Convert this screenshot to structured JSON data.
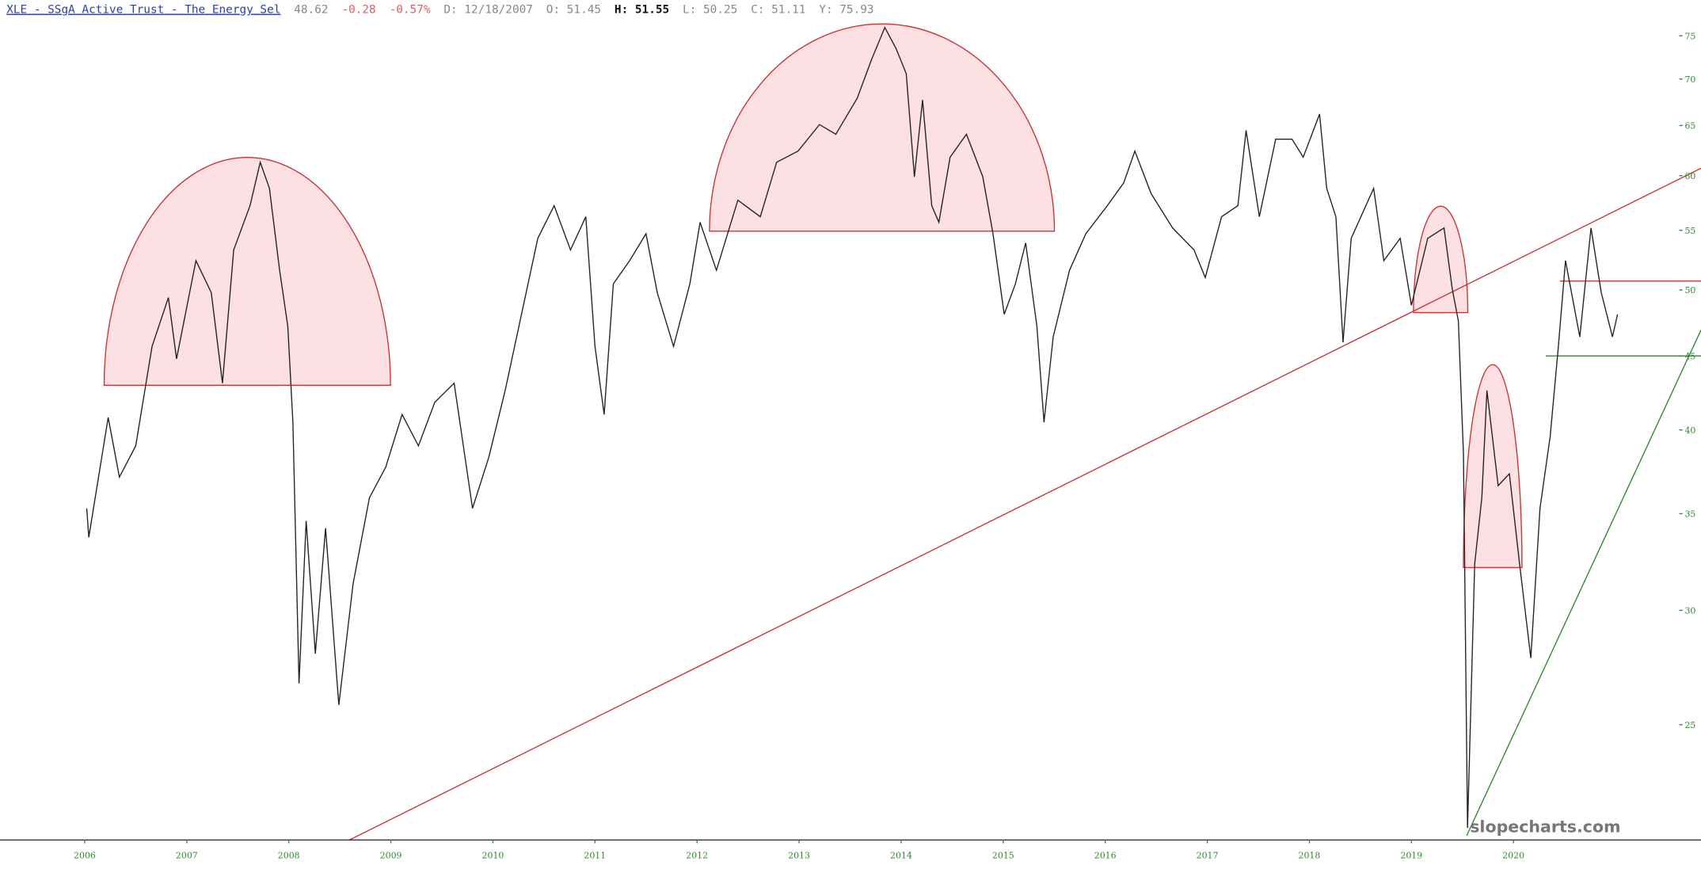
{
  "chart_data": {
    "type": "line",
    "title": "XLE - SSgA Active Trust - The Energy Sel",
    "quote": [
      "48.62",
      "-0.28",
      "-0.57%",
      "D: 12/18/2007",
      "O: 51.45",
      "H: 51.55",
      "L: 50.25",
      "C: 51.11",
      "Y: 75.93"
    ],
    "watermark": "slopecharts.com",
    "color": "#222222",
    "log_y": true,
    "xlim": [
      2005.17,
      2021.54
    ],
    "ylim": [
      20.8,
      79.4
    ],
    "xticks": [
      2006,
      2007,
      2008,
      2009,
      2010,
      2011,
      2012,
      2013,
      2014,
      2015,
      2016,
      2017,
      2018,
      2019,
      2020
    ],
    "yticks": [
      25,
      30,
      35,
      40,
      45,
      50,
      55,
      60,
      65,
      70,
      75
    ],
    "x": [
      2006.02,
      2006.04,
      2006.23,
      2006.34,
      2006.5,
      2006.66,
      2006.82,
      2006.9,
      2007.09,
      2007.24,
      2007.35,
      2007.46,
      2007.62,
      2007.72,
      2007.81,
      2007.91,
      2007.99,
      2008.04,
      2008.1,
      2008.17,
      2008.26,
      2008.36,
      2008.49,
      2008.63,
      2008.79,
      2008.95,
      2009.11,
      2009.27,
      2009.43,
      2009.62,
      2009.8,
      2009.96,
      2010.12,
      2010.28,
      2010.44,
      2010.6,
      2010.76,
      2010.91,
      2011.0,
      2011.09,
      2011.18,
      2011.34,
      2011.5,
      2011.61,
      2011.77,
      2011.93,
      2012.03,
      2012.19,
      2012.4,
      2012.62,
      2012.78,
      2012.99,
      2013.2,
      2013.36,
      2013.57,
      2013.71,
      2013.84,
      2013.95,
      2014.05,
      2014.13,
      2014.21,
      2014.3,
      2014.37,
      2014.48,
      2014.64,
      2014.8,
      2014.9,
      2015.01,
      2015.12,
      2015.22,
      2015.33,
      2015.4,
      2015.49,
      2015.65,
      2015.81,
      2016.02,
      2016.18,
      2016.29,
      2016.45,
      2016.66,
      2016.87,
      2016.98,
      2017.14,
      2017.3,
      2017.38,
      2017.51,
      2017.67,
      2017.83,
      2017.94,
      2018.1,
      2018.17,
      2018.26,
      2018.33,
      2018.41,
      2018.63,
      2018.73,
      2018.89,
      2019.0,
      2019.16,
      2019.32,
      2019.4,
      2019.46,
      2019.51,
      2019.55,
      2019.62,
      2019.69,
      2019.74,
      2019.85,
      2019.96,
      2020.06,
      2020.17,
      2020.26,
      2020.36,
      2020.44,
      2020.51,
      2020.65,
      2020.76,
      2020.86,
      2020.97,
      2021.02
    ],
    "values": [
      35.3,
      33.7,
      40.8,
      37.1,
      39.0,
      45.7,
      49.4,
      44.8,
      52.4,
      49.8,
      43.1,
      53.3,
      57.2,
      61.3,
      58.8,
      51.6,
      47.2,
      40.5,
      26.7,
      34.6,
      28.0,
      34.2,
      25.8,
      31.3,
      35.9,
      37.7,
      41.0,
      39.0,
      41.8,
      43.1,
      35.3,
      38.3,
      42.6,
      48.1,
      54.3,
      57.2,
      53.3,
      56.2,
      45.7,
      41.0,
      50.5,
      52.4,
      54.7,
      49.8,
      45.7,
      50.5,
      55.7,
      51.6,
      57.7,
      56.2,
      61.3,
      62.4,
      65.1,
      64.1,
      67.9,
      72.2,
      76.0,
      73.5,
      70.6,
      59.9,
      67.7,
      57.2,
      55.7,
      61.8,
      64.1,
      59.9,
      54.7,
      48.1,
      50.5,
      53.9,
      47.2,
      40.5,
      46.4,
      51.6,
      54.7,
      57.2,
      59.3,
      62.4,
      58.3,
      55.2,
      53.3,
      51.0,
      56.2,
      57.2,
      64.5,
      56.2,
      63.6,
      63.6,
      61.8,
      66.2,
      58.8,
      56.2,
      46.0,
      54.3,
      58.8,
      52.4,
      54.3,
      48.8,
      54.3,
      55.2,
      50.1,
      47.6,
      38.5,
      21.2,
      32.3,
      35.9,
      42.6,
      36.6,
      37.3,
      32.3,
      27.8,
      35.3,
      39.6,
      45.7,
      52.4,
      46.4,
      55.2,
      49.8,
      46.4,
      48.1
    ]
  }
}
